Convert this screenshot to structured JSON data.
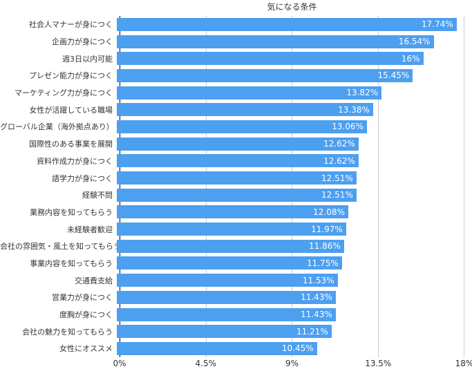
{
  "chart_data": {
    "type": "bar",
    "orientation": "horizontal",
    "title": "気になる条件",
    "xlabel": "",
    "ylabel": "",
    "xlim": [
      0,
      18
    ],
    "grid": true,
    "legend": "none",
    "categories": [
      "社会人マナーが身につく",
      "企画力が身につく",
      "週3日以内可能",
      "プレゼン能力が身につく",
      "マーケティング力が身につく",
      "女性が活躍している職場",
      "グローバル企業（海外拠点あり）",
      "国際性のある事業を展開",
      "資料作成力が身につく",
      "語学力が身につく",
      "経験不問",
      "業務内容を知ってもらう",
      "未経験者歓迎",
      "会社の雰囲気・風土を知ってもらう",
      "事業内容を知ってもらう",
      "交通費支給",
      "営業力が身につく",
      "度胸が身につく",
      "会社の魅力を知ってもらう",
      "女性にオススメ"
    ],
    "values": [
      17.74,
      16.54,
      16,
      15.45,
      13.82,
      13.38,
      13.06,
      12.62,
      12.62,
      12.51,
      12.51,
      12.08,
      11.97,
      11.86,
      11.75,
      11.53,
      11.43,
      11.43,
      11.21,
      10.45
    ],
    "value_labels": [
      "17.74%",
      "16.54%",
      "16%",
      "15.45%",
      "13.82%",
      "13.38%",
      "13.06%",
      "12.62%",
      "12.62%",
      "12.51%",
      "12.51%",
      "12.08%",
      "11.97%",
      "11.86%",
      "11.75%",
      "11.53%",
      "11.43%",
      "11.43%",
      "11.21%",
      "10.45%"
    ],
    "x_ticks": [
      "0%",
      "4.5%",
      "9%",
      "13.5%",
      "18%"
    ],
    "x_tick_values": [
      0,
      4.5,
      9,
      13.5,
      18
    ],
    "colors": {
      "bar": "#4D9FF0",
      "gridline": "#CCCCCC",
      "axis_line": "#000000",
      "value_label": "#FFFFFF",
      "text": "#333333",
      "background": "#FFFFFF"
    }
  }
}
